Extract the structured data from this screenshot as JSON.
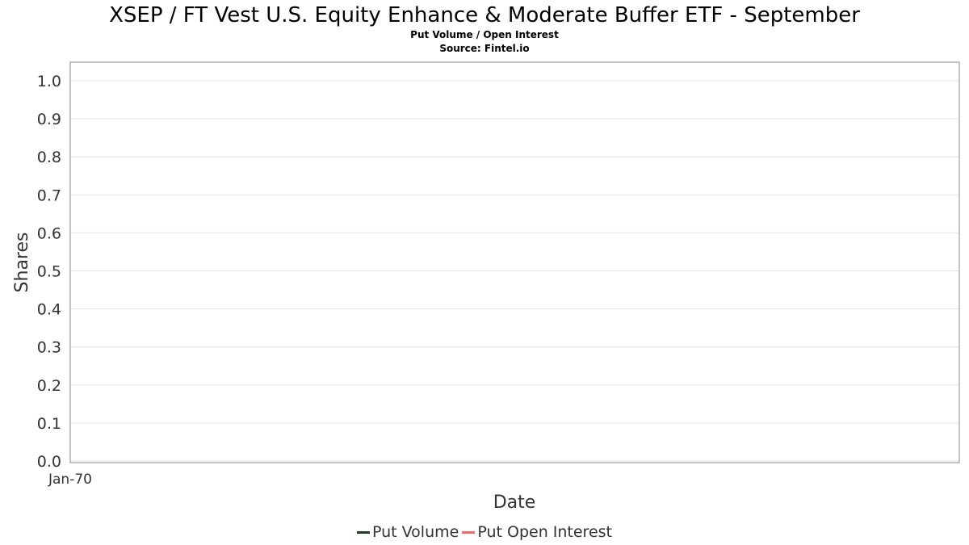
{
  "chart_data": {
    "type": "line",
    "title": "XSEP / FT Vest U.S. Equity Enhance & Moderate Buffer ETF - September",
    "subtitle": "Put Volume / Open Interest",
    "source": "Source: Fintel.io",
    "xlabel": "Date",
    "ylabel": "Shares",
    "ylim": [
      0,
      1.0
    ],
    "y_ticks": [
      "0.0",
      "0.1",
      "0.2",
      "0.3",
      "0.4",
      "0.5",
      "0.6",
      "0.7",
      "0.8",
      "0.9",
      "1.0"
    ],
    "x_ticks": [
      "Jan-70"
    ],
    "grid": true,
    "legend_position": "bottom",
    "series": [
      {
        "name": "Put Volume",
        "color": "#1a3d1a",
        "values": []
      },
      {
        "name": "Put Open Interest",
        "color": "#ff6666",
        "values": []
      }
    ]
  }
}
